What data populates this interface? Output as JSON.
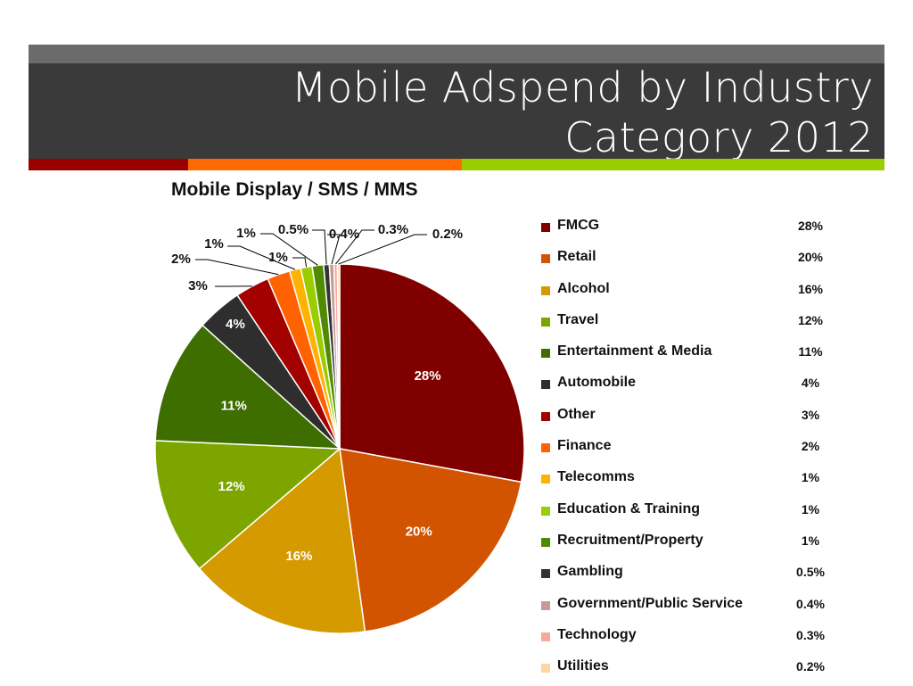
{
  "slide": {
    "title_line1": "Mobile Adspend by Industry",
    "title_line2": "Category 2012"
  },
  "colors": {
    "header_top": "#6b6b6b",
    "header": "#3a3a3a",
    "stripe_red": "#9b0000",
    "stripe_orange": "#ff6a00",
    "stripe_green": "#9acd00"
  },
  "chart_data": {
    "type": "pie",
    "title": "Mobile Display / SMS / MMS",
    "legend_position": "right",
    "slices": [
      {
        "label": "FMCG",
        "value": 28,
        "display": "28%",
        "color": "#800000"
      },
      {
        "label": "Retail",
        "value": 20,
        "display": "20%",
        "color": "#d35400"
      },
      {
        "label": "Alcohol",
        "value": 16,
        "display": "16%",
        "color": "#d49a00"
      },
      {
        "label": "Travel",
        "value": 12,
        "display": "12%",
        "color": "#7da500"
      },
      {
        "label": "Entertainment & Media",
        "value": 11,
        "display": "11%",
        "color": "#3f6e00"
      },
      {
        "label": "Automobile",
        "value": 4,
        "display": "4%",
        "color": "#2e2e2e"
      },
      {
        "label": "Other",
        "value": 3,
        "display": "3%",
        "color": "#a30000"
      },
      {
        "label": "Finance",
        "value": 2,
        "display": "2%",
        "color": "#ff6200"
      },
      {
        "label": "Telecomms",
        "value": 1,
        "display": "1%",
        "color": "#ffb200"
      },
      {
        "label": "Education & Training",
        "value": 1,
        "display": "1%",
        "color": "#9acd00"
      },
      {
        "label": "Recruitment/Property",
        "value": 1,
        "display": "1%",
        "color": "#4f8a00"
      },
      {
        "label": "Gambling",
        "value": 0.5,
        "display": "0.5%",
        "color": "#333333"
      },
      {
        "label": "Government/Public Service",
        "value": 0.4,
        "display": "0.4%",
        "color": "#c49a94"
      },
      {
        "label": "Technology",
        "value": 0.3,
        "display": "0.3%",
        "color": "#f7a8a0"
      },
      {
        "label": "Utilities",
        "value": 0.2,
        "display": "0.2%",
        "color": "#fdd6a0"
      }
    ]
  }
}
